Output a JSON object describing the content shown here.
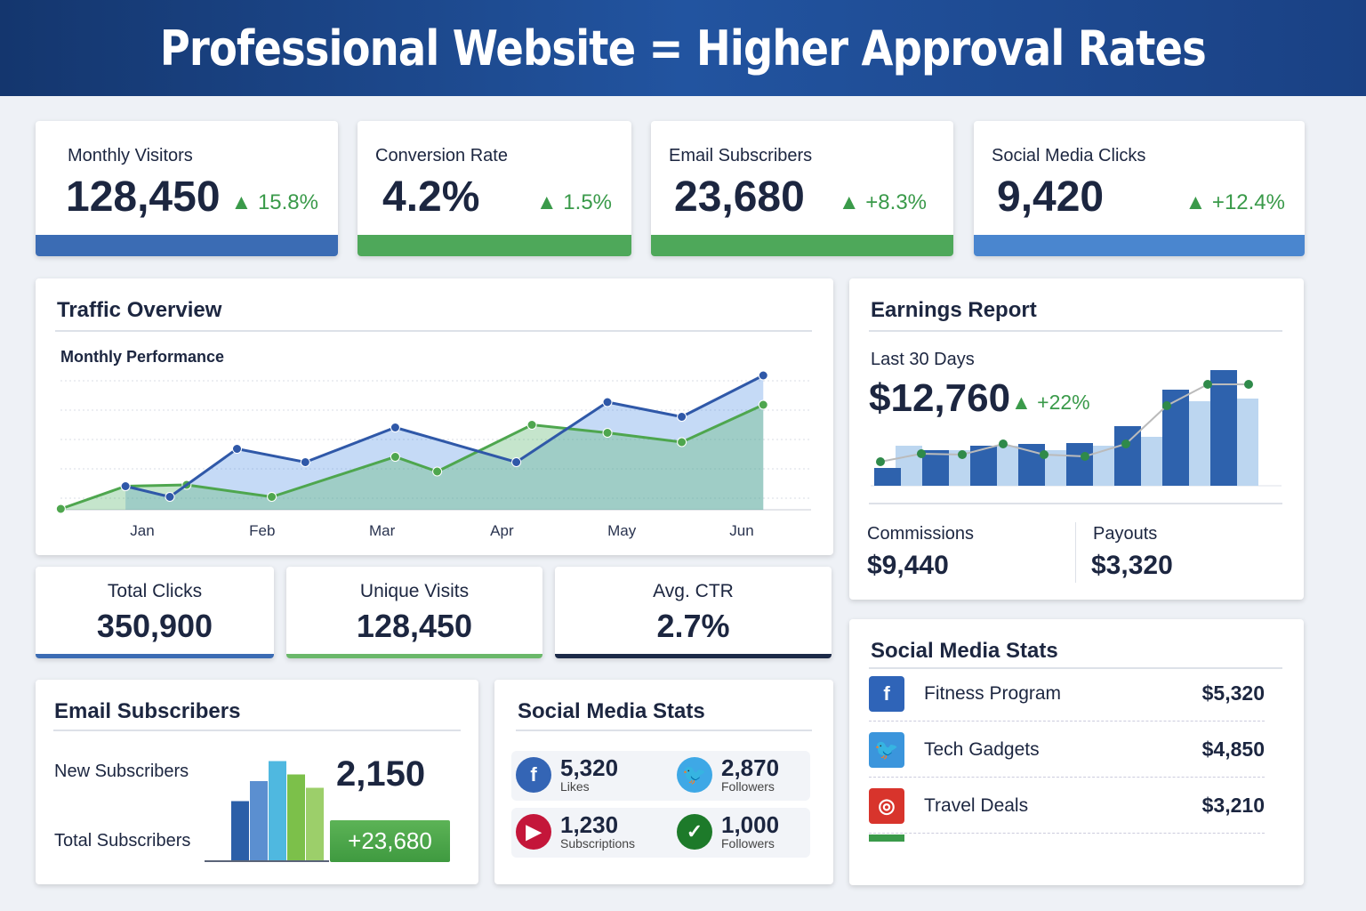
{
  "header": {
    "title": "Professional Website = Higher Approval Rates"
  },
  "kpis": [
    {
      "label": "Monthly Visitors",
      "value": "128,450",
      "change": "▲ 15.8%",
      "color": "#3b6cb4"
    },
    {
      "label": "Conversion Rate",
      "value": "4.2%",
      "change": "▲ 1.5%",
      "color": "#4ea85a"
    },
    {
      "label": "Email Subscribers",
      "value": "23,680",
      "change": "▲ +8.3%",
      "color": "#4ea85a"
    },
    {
      "label": "Social Media Clicks",
      "value": "9,420",
      "change": "▲ +12.4%",
      "color": "#4a86cf"
    }
  ],
  "traffic": {
    "title": "Traffic Overview",
    "subtitle": "Monthly Performance"
  },
  "chart_data": [
    {
      "type": "line",
      "categories": [
        "Jan",
        "Feb",
        "Mar",
        "Apr",
        "May",
        "Jun"
      ],
      "ylim": [
        0,
        100
      ],
      "grid": true,
      "series": [
        {
          "color": "#2f58a8",
          "points": [
            [
              0.86,
              17
            ],
            [
              1.23,
              9
            ],
            [
              1.79,
              45
            ],
            [
              2.36,
              35
            ],
            [
              3.11,
              61
            ],
            [
              4.12,
              35
            ],
            [
              4.88,
              80
            ],
            [
              5.5,
              69
            ],
            [
              6.18,
              100
            ]
          ]
        },
        {
          "color": "#4ea64e",
          "points": [
            [
              0.32,
              0
            ],
            [
              0.86,
              17
            ],
            [
              1.37,
              18
            ],
            [
              2.08,
              9
            ],
            [
              3.11,
              39
            ],
            [
              3.46,
              28
            ],
            [
              4.25,
              63
            ],
            [
              4.88,
              57
            ],
            [
              5.5,
              50
            ],
            [
              6.18,
              78
            ]
          ]
        }
      ]
    },
    {
      "type": "bar",
      "ylim": [
        0,
        140
      ],
      "series": [
        {
          "color": "#2e62ad",
          "values": [
            20,
            40,
            45,
            47,
            48,
            67,
            108,
            130
          ]
        },
        {
          "color": "#bcd6f0",
          "values": [
            45,
            40,
            45,
            40,
            45,
            55,
            95,
            98
          ]
        },
        {
          "type": "line",
          "color": "#2f8a4a",
          "values": [
            27,
            36,
            35,
            47,
            35,
            33,
            47,
            90,
            114,
            114
          ]
        }
      ]
    },
    {
      "type": "bar",
      "values": [
        45,
        60,
        75,
        65,
        55
      ],
      "colors": [
        "#2b5fa8",
        "#5b8fd0",
        "#4fb8e0",
        "#7cc04a",
        "#9ccf6a"
      ]
    }
  ],
  "earnings": {
    "title": "Earnings Report",
    "period": "Last 30 Days",
    "total": "$12,760",
    "change": "▲ +22%",
    "commissions_label": "Commissions",
    "commissions": "$9,440",
    "payouts_label": "Payouts",
    "payouts": "$3,320"
  },
  "small": [
    {
      "label": "Total Clicks",
      "value": "350,900",
      "color": "#3b6cb4"
    },
    {
      "label": "Unique Visits",
      "value": "128,450",
      "color": "#6ab86a"
    },
    {
      "label": "Avg. CTR",
      "value": "2.7%",
      "color": "#1c2a48"
    }
  ],
  "email": {
    "title": "Email Subscribers",
    "new_label": "New Subscribers",
    "new_value": "2,150",
    "total_label": "Total Subscribers",
    "total_value": "+23,680"
  },
  "social": {
    "title": "Social Media Stats",
    "items": [
      {
        "icon": "facebook-icon",
        "value": "5,320",
        "label": "Likes",
        "color": "#3465b5"
      },
      {
        "icon": "twitter-icon",
        "value": "2,870",
        "label": "Followers",
        "color": "#3ea8e6"
      },
      {
        "icon": "youtube-icon",
        "value": "1,230",
        "label": "Subscriptions",
        "color": "#c4163a"
      },
      {
        "icon": "chat-icon",
        "value": "1,000",
        "label": "Followers",
        "color": "#1d7a2a"
      }
    ]
  },
  "social2": {
    "title": "Social Media Stats",
    "rows": [
      {
        "icon": "facebook-icon",
        "name": "Fitness Program",
        "amount": "$5,320",
        "color": "#2f64b8"
      },
      {
        "icon": "twitter-icon",
        "name": "Tech Gadgets",
        "amount": "$4,850",
        "color": "#3b95dc"
      },
      {
        "icon": "instagram-icon",
        "name": "Travel Deals",
        "amount": "$3,210",
        "color": "#d8342c"
      }
    ]
  }
}
